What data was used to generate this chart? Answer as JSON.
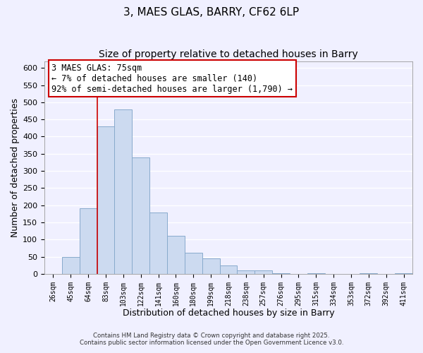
{
  "title": "3, MAES GLAS, BARRY, CF62 6LP",
  "subtitle": "Size of property relative to detached houses in Barry",
  "xlabel": "Distribution of detached houses by size in Barry",
  "ylabel": "Number of detached properties",
  "bar_color": "#ccdaf0",
  "bar_edge_color": "#88aacc",
  "bin_labels": [
    "26sqm",
    "45sqm",
    "64sqm",
    "83sqm",
    "103sqm",
    "122sqm",
    "141sqm",
    "160sqm",
    "180sqm",
    "199sqm",
    "218sqm",
    "238sqm",
    "257sqm",
    "276sqm",
    "295sqm",
    "315sqm",
    "334sqm",
    "353sqm",
    "372sqm",
    "392sqm",
    "411sqm"
  ],
  "bin_values": [
    0,
    50,
    192,
    430,
    480,
    340,
    178,
    110,
    62,
    45,
    25,
    10,
    10,
    2,
    0,
    2,
    0,
    0,
    2,
    0,
    2
  ],
  "vline_x": 2.5,
  "vline_color": "#cc0000",
  "ylim": [
    0,
    620
  ],
  "yticks": [
    0,
    50,
    100,
    150,
    200,
    250,
    300,
    350,
    400,
    450,
    500,
    550,
    600
  ],
  "annotation_text": "3 MAES GLAS: 75sqm\n← 7% of detached houses are smaller (140)\n92% of semi-detached houses are larger (1,790) →",
  "footer1": "Contains HM Land Registry data © Crown copyright and database right 2025.",
  "footer2": "Contains public sector information licensed under the Open Government Licence v3.0.",
  "background_color": "#f0f0ff",
  "grid_color": "#ffffff"
}
